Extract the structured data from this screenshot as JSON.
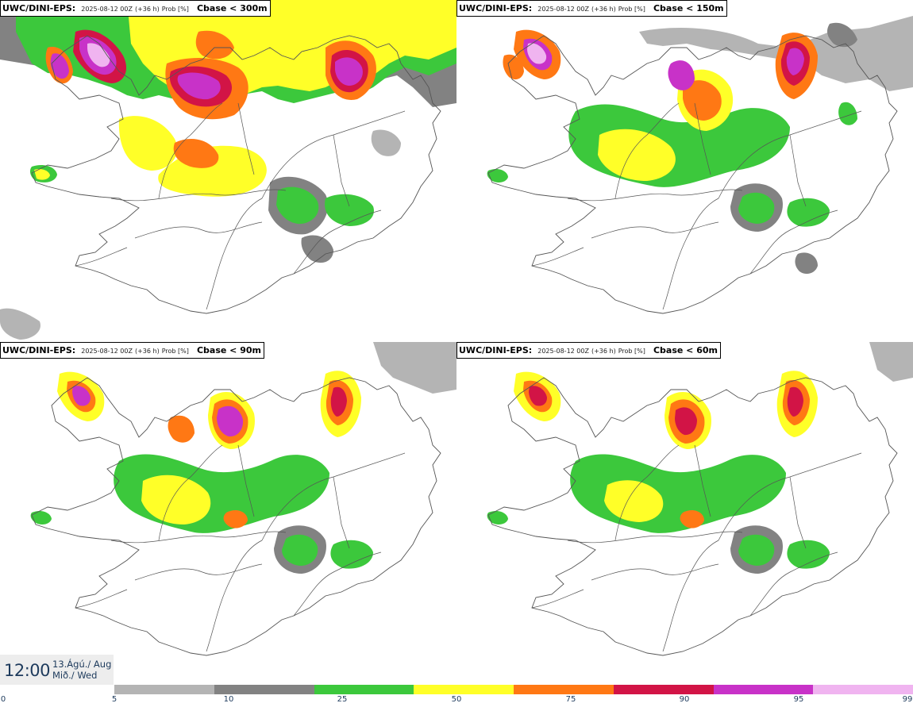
{
  "panels": [
    {
      "model": "UWC/DINI-EPS",
      "run": "2025-08-12 00Z",
      "lead": "(+36 h)",
      "field": "Prob [%]",
      "threshold": "Cbase < 300m"
    },
    {
      "model": "UWC/DINI-EPS",
      "run": "2025-08-12 00Z",
      "lead": "(+36 h)",
      "field": "Prob [%]",
      "threshold": "Cbase < 150m"
    },
    {
      "model": "UWC/DINI-EPS",
      "run": "2025-08-12 00Z",
      "lead": "(+36 h)",
      "field": "Prob [%]",
      "threshold": "Cbase < 90m"
    },
    {
      "model": "UWC/DINI-EPS",
      "run": "2025-08-12 00Z",
      "lead": "(+36 h)",
      "field": "Prob [%]",
      "threshold": "Cbase < 60m"
    }
  ],
  "valid_time": {
    "time": "12:00",
    "date_line1": "13.Ágú./ Aug",
    "date_line2": "Mið./ Wed"
  },
  "colorbar": {
    "colors": [
      "#b4b4b4",
      "#828282",
      "#3cc83c",
      "#ffff28",
      "#ff7814",
      "#d21446",
      "#c832c8",
      "#f0b4f0"
    ],
    "ticks": [
      "0",
      "5",
      "10",
      "25",
      "50",
      "75",
      "90",
      "95",
      "99"
    ]
  },
  "legend_colors": {
    "p5": "#b4b4b4",
    "p10": "#828282",
    "p25": "#3cc83c",
    "p50": "#ffff28",
    "p75": "#ff7814",
    "p90": "#d21446",
    "p95": "#c832c8",
    "p99": "#f0b4f0"
  }
}
